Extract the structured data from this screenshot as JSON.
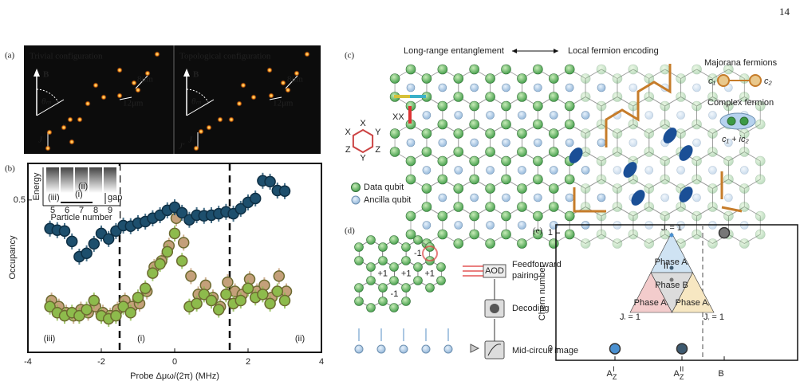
{
  "page_number": "14",
  "panel_a": {
    "label": "(a)",
    "left_title": "Trivial configuration",
    "right_title": "Topological configuration",
    "field": "B",
    "angle": "θₘ",
    "short_dist": "8μm",
    "long_dist": "12μm",
    "coupling": "J",
    "coupling2": "J′"
  },
  "chart_data": [
    {
      "type": "scatter",
      "label": "(b)",
      "xlabel": "Probe Δμω/(2π) (MHz)",
      "ylabel": "Occupancy",
      "x": [
        -3.4,
        -3.2,
        -3.0,
        -2.8,
        -2.6,
        -2.4,
        -2.2,
        -2.0,
        -1.8,
        -1.6,
        -1.4,
        -1.2,
        -1.0,
        -0.8,
        -0.6,
        -0.4,
        -0.2,
        0,
        0.2,
        0.4,
        0.6,
        0.8,
        1.0,
        1.2,
        1.4,
        1.6,
        1.8,
        2.0,
        2.2,
        2.4,
        2.6,
        2.8,
        3.0
      ],
      "series": [
        {
          "color": "#c4a07a",
          "values": [
            0.17,
            0.15,
            0.13,
            0.12,
            0.14,
            0.13,
            0.15,
            0.13,
            0.12,
            0.14,
            0.17,
            0.15,
            0.16,
            0.2,
            0.28,
            0.3,
            0.35,
            0.44,
            0.36,
            0.25,
            0.19,
            0.22,
            0.18,
            0.15,
            0.23,
            0.2,
            0.19,
            0.24,
            0.2,
            0.22,
            0.18,
            0.25,
            0.2
          ]
        },
        {
          "color": "#8dbb4c",
          "values": [
            0.15,
            0.13,
            0.12,
            0.13,
            0.12,
            0.14,
            0.17,
            0.12,
            0.11,
            0.12,
            0.15,
            0.13,
            0.18,
            0.21,
            0.26,
            0.29,
            0.33,
            0.39,
            0.3,
            0.15,
            0.16,
            0.19,
            0.17,
            0.14,
            0.19,
            0.16,
            0.17,
            0.21,
            0.18,
            0.19,
            0.16,
            0.2,
            0.17
          ]
        },
        {
          "color": "#1d4f6d",
          "values": [
            0.406,
            0.401,
            0.398,
            0.364,
            0.314,
            0.325,
            0.356,
            0.39,
            0.372,
            0.398,
            0.416,
            0.414,
            0.424,
            0.429,
            0.44,
            0.45,
            0.466,
            0.476,
            0.458,
            0.435,
            0.45,
            0.448,
            0.45,
            0.455,
            0.461,
            0.455,
            0.471,
            0.492,
            0.505,
            0.563,
            0.56,
            0.531,
            0.529
          ]
        }
      ],
      "xlim": [
        -4,
        4
      ],
      "xticks": [
        -4,
        -2,
        0,
        2,
        4
      ],
      "ylim": [
        0,
        0.62
      ],
      "yticks": [
        0.5
      ],
      "vlines": [
        -1.5,
        1.5
      ],
      "regions": [
        "(iii)",
        "(i)",
        "(ii)"
      ],
      "inset": {
        "ylabel": "Energy",
        "xlabel": "Particle number",
        "xticks": [
          5,
          6,
          7,
          8,
          9
        ],
        "gap": "gap",
        "marks": [
          "(iii)",
          "(i)",
          "(ii)"
        ]
      }
    },
    {
      "type": "scatter",
      "label": "(e)",
      "ylabel": "Chern number",
      "categories": [
        {
          "main": "A",
          "sub": "Z",
          "sup": "I"
        },
        {
          "main": "A",
          "sub": "Z",
          "sup": "II"
        },
        {
          "main": "B"
        }
      ],
      "values": [
        0,
        0,
        1
      ],
      "colors": [
        "#4a90d0",
        "#3e5a70",
        "#777777"
      ],
      "ylim": [
        -0.1,
        1.07
      ],
      "yticks": [
        0,
        1
      ],
      "inset": {
        "top": {
          "main": "J",
          "sub": "z",
          "rest": " = 1"
        },
        "left": {
          "main": "J",
          "sub": "x",
          "rest": " = 1"
        },
        "right": {
          "main": "J",
          "sub": "y",
          "rest": " = 1"
        },
        "phase_top": {
          "main": "Phase A",
          "sub": "z"
        },
        "phase_mid": "Phase B",
        "phase_left": {
          "main": "Phase A",
          "sub": "x"
        },
        "phase_right": {
          "main": "Phase A",
          "sub": "y"
        },
        "top_sub": "II"
      }
    }
  ],
  "panel_c": {
    "label": "(c)",
    "left_head": "Long-range entanglement",
    "right_head": "Local fermion encoding",
    "majorana": "Majorana fermions",
    "c1": "c₁",
    "c2": "c₂",
    "complex": "Complex fermion",
    "complex_eq": "c₁ + ic₂",
    "xx": "XX",
    "hex_labels": [
      "X",
      "Y",
      "Z",
      "Y",
      "Z",
      "X"
    ],
    "legend": [
      "Data qubit",
      "Ancilla qubit"
    ]
  },
  "panel_d": {
    "label": "(d)",
    "signs": [
      "+1",
      "-1",
      "+1",
      "+1",
      "-1"
    ],
    "aod": "AOD",
    "feedforward": "Feedforward\npairing",
    "decoding": "Decoding",
    "image": "Mid-circuit image"
  }
}
